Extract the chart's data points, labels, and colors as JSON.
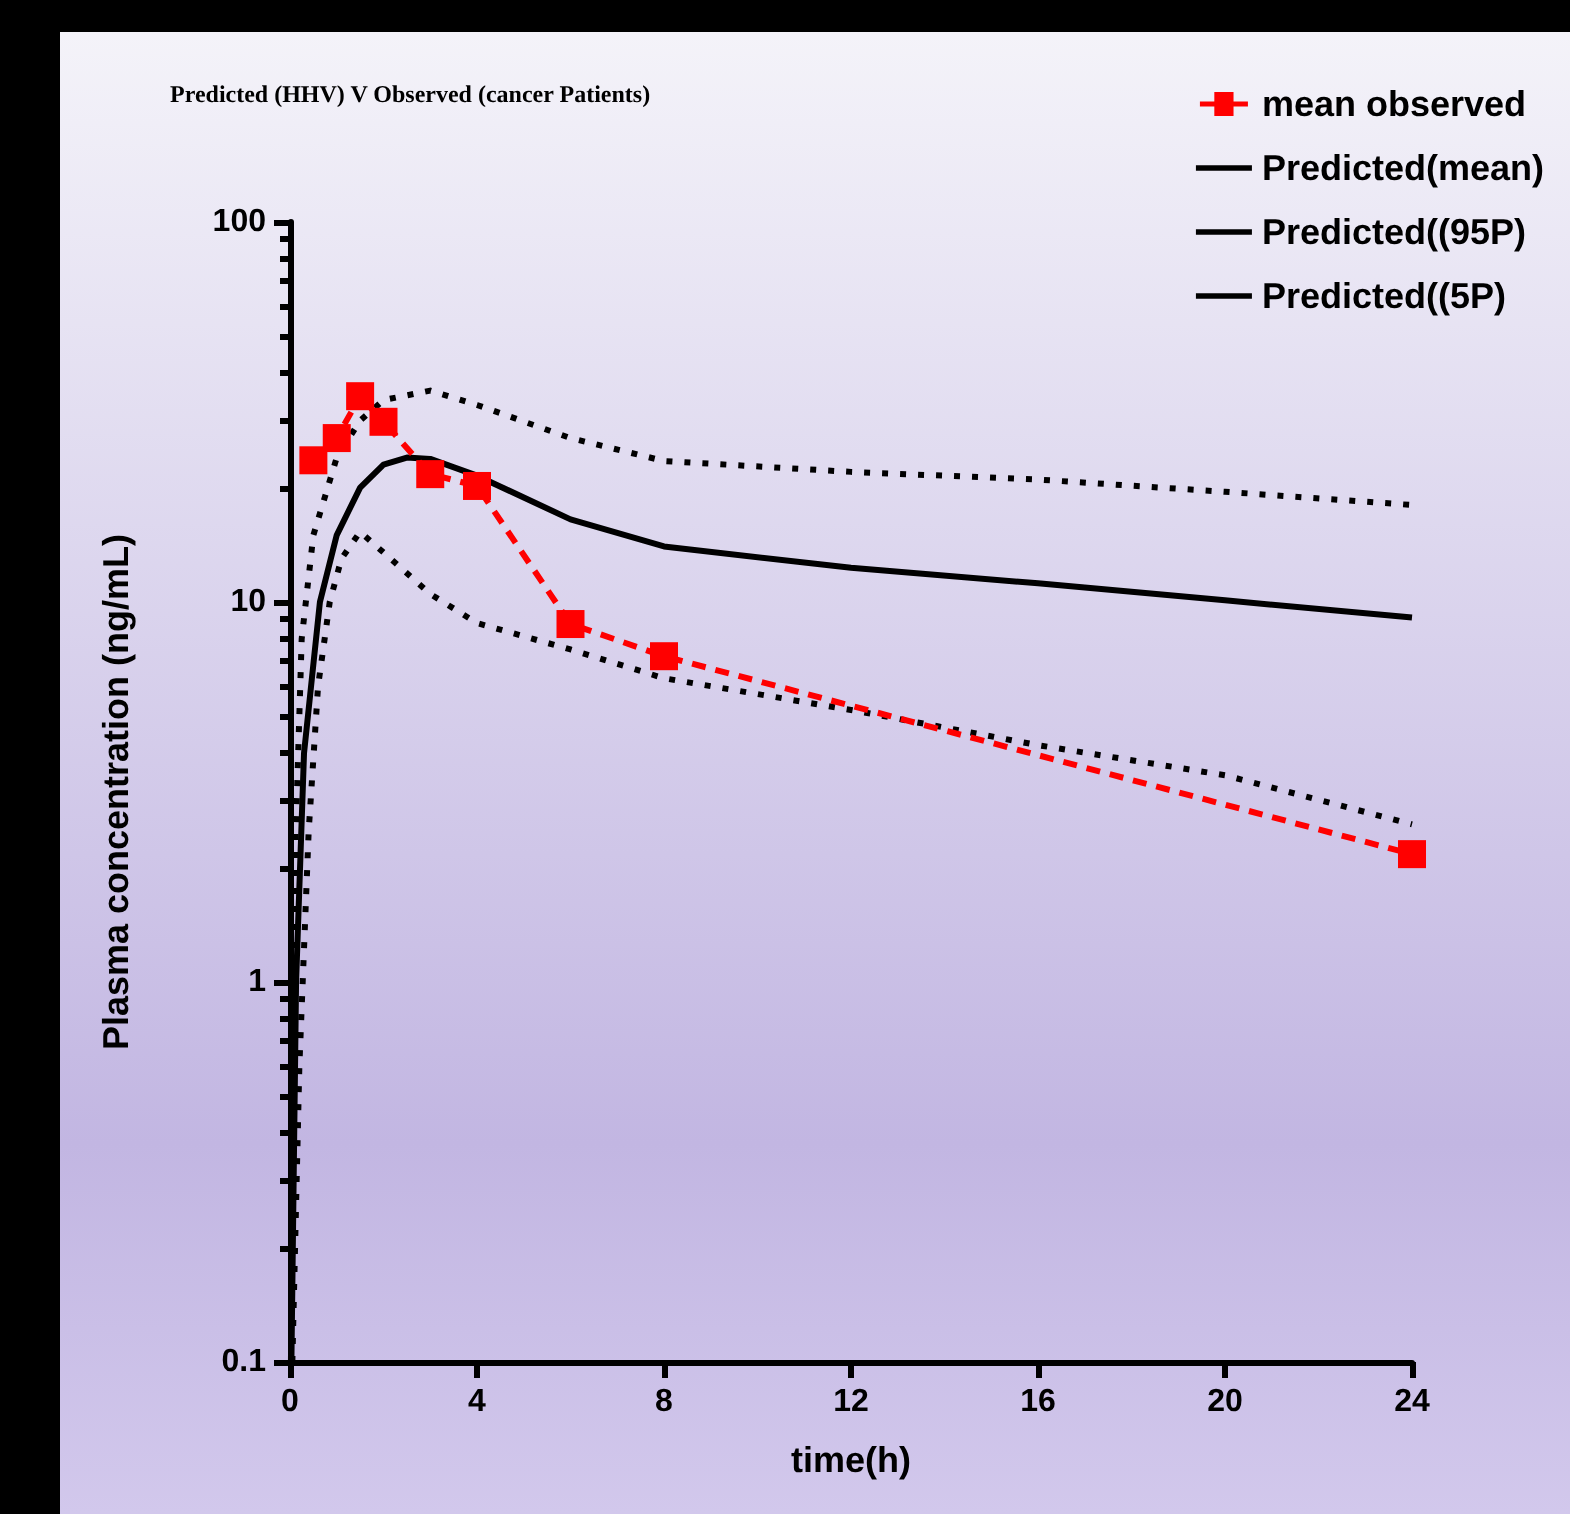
{
  "chart_data": {
    "type": "line",
    "title": "Predicted (HHV) V Observed (cancer Patients)",
    "xlabel": "time(h)",
    "ylabel": "Plasma concentration (ng/mL)",
    "xlim": [
      0,
      24
    ],
    "xticks": [
      0,
      4,
      8,
      12,
      16,
      20,
      24
    ],
    "ylim": [
      0.1,
      100
    ],
    "yticks": [
      0.1,
      1,
      10,
      100
    ],
    "log": "y",
    "grid": false,
    "legend": "top right",
    "series": [
      {
        "name": "mean observed",
        "color": "#ff0000",
        "marker": "square",
        "line_style": "dashed",
        "x": [
          0.5,
          1,
          1.5,
          2,
          3,
          4,
          6,
          8,
          24
        ],
        "values": [
          23.6,
          27,
          34.8,
          29.8,
          21.7,
          20.2,
          8.75,
          7.2,
          2.17
        ]
      },
      {
        "name": "Predicted(mean)",
        "color": "#000000",
        "marker": "none",
        "line_style": "solid",
        "x": [
          0.03,
          0.13,
          0.3,
          0.64,
          1,
          1.5,
          2,
          2.5,
          3,
          4,
          6,
          8,
          12,
          16,
          20,
          24
        ],
        "values": [
          0.1,
          1,
          4,
          10,
          15,
          20,
          23,
          24,
          23.8,
          21.5,
          16.5,
          14,
          12.3,
          11.2,
          10.1,
          9.1
        ]
      },
      {
        "name": "Predicted((95P)",
        "color": "#000000",
        "marker": "none",
        "line_style": "dotted",
        "x": [
          0.02,
          0.1,
          0.25,
          0.5,
          1,
          1.5,
          2,
          3,
          4,
          6,
          8,
          12,
          16,
          20,
          24
        ],
        "values": [
          0.1,
          2,
          8,
          15,
          24,
          30,
          34,
          36,
          33,
          27,
          23.5,
          22,
          21,
          19.5,
          18
        ]
      },
      {
        "name": "Predicted((5P)",
        "color": "#000000",
        "marker": "none",
        "line_style": "dotted",
        "x": [
          0.05,
          0.2,
          0.4,
          0.6,
          0.85,
          1.1,
          1.5,
          2,
          3,
          4,
          6,
          8,
          12,
          16,
          20,
          24
        ],
        "values": [
          0.1,
          0.6,
          2.5,
          6,
          10,
          13,
          15.3,
          13.5,
          10.5,
          8.8,
          7.5,
          6.3,
          5.2,
          4.2,
          3.5,
          2.6
        ]
      }
    ]
  }
}
